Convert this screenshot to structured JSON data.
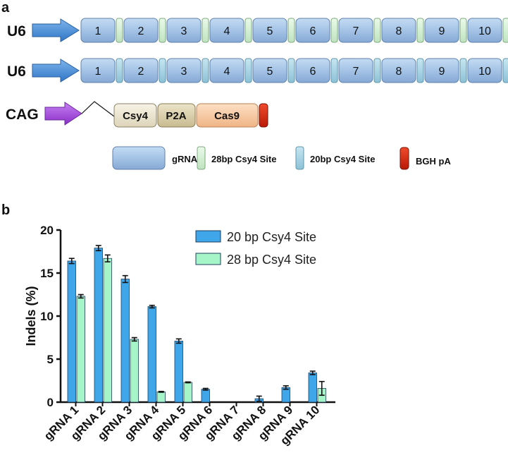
{
  "panel_a": {
    "label": "a",
    "constructs": [
      {
        "promoter": "U6",
        "units": [
          "1",
          "2",
          "3",
          "4",
          "5",
          "6",
          "7",
          "8",
          "9",
          "10"
        ],
        "site": "28bp Csy4 Site"
      },
      {
        "promoter": "U6",
        "units": [
          "1",
          "2",
          "3",
          "4",
          "5",
          "6",
          "7",
          "8",
          "9",
          "10"
        ],
        "site": "20bp Csy4 Site"
      }
    ],
    "cag": {
      "promoter": "CAG",
      "blocks": [
        "Csy4",
        "P2A",
        "Cas9"
      ]
    },
    "legend": [
      {
        "label": "gRNA",
        "color": "#a8c6e6"
      },
      {
        "label": "28bp Csy4 Site",
        "color": "#d4eed4"
      },
      {
        "label": "20bp Csy4 Site",
        "color": "#a9d2e2"
      },
      {
        "label": "BGH pA",
        "color": "#dd2a12"
      }
    ],
    "colors": {
      "arrow_u6": "#4d8fd6",
      "arrow_cag": "#a84be0",
      "csy4": "#ece6d2",
      "p2a": "#d9cfae",
      "cas9": "#f7c9a3"
    }
  },
  "panel_b": {
    "label": "b",
    "chart_data": {
      "type": "bar",
      "title": "",
      "xlabel": "",
      "ylabel": "Indels (%)",
      "ylim": [
        0,
        20
      ],
      "yticks": [
        "0",
        "5",
        "10",
        "15",
        "20"
      ],
      "categories": [
        "gRNA 1",
        "gRNA 2",
        "gRNA 3",
        "gRNA 4",
        "gRNA 5",
        "gRNA 6",
        "gRNA 7",
        "gRNA 8",
        "gRNA 9",
        "gRNA 10"
      ],
      "series": [
        {
          "name": "20 bp Csy4 Site",
          "color": "#3fa6ea",
          "values": [
            16.4,
            17.9,
            14.3,
            11.1,
            7.1,
            1.5,
            0,
            0.4,
            1.7,
            3.4
          ],
          "errors": [
            0.3,
            0.3,
            0.4,
            0.15,
            0.25,
            0.1,
            0,
            0.3,
            0.2,
            0.2
          ]
        },
        {
          "name": "28 bp Csy4 Site",
          "color": "#a6f5c9",
          "values": [
            12.3,
            16.7,
            7.3,
            1.2,
            2.3,
            0,
            0,
            0,
            0,
            1.6
          ],
          "errors": [
            0.2,
            0.4,
            0.2,
            0.05,
            0.05,
            0,
            0,
            0,
            0,
            0.8
          ]
        }
      ],
      "legend_position": "top-right"
    }
  }
}
